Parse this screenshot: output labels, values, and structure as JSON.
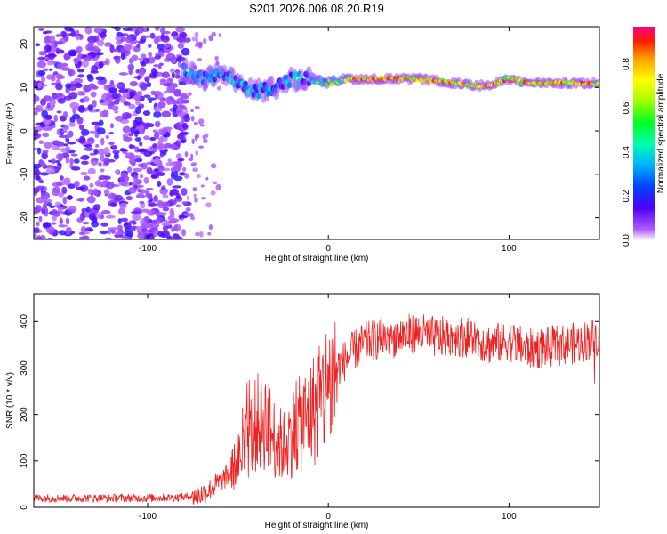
{
  "figure_title": "S201.2026.006.08.20.R19",
  "chart_data": [
    {
      "type": "heatmap",
      "title": "S201.2026.006.08.20.R19",
      "xlabel": "Height of straight line (km)",
      "ylabel": "Frequency (Hz)",
      "xlim": [
        -163,
        150
      ],
      "ylim": [
        -25,
        24
      ],
      "xticks": [
        -100,
        0,
        100
      ],
      "yticks": [
        -20,
        -10,
        0,
        10,
        20
      ],
      "colorbar": {
        "label": "Normalized spectral amplitude",
        "range": [
          0,
          0.97
        ],
        "ticks": [
          0.0,
          0.2,
          0.4,
          0.6,
          0.8
        ],
        "tick_labels": [
          "0.0",
          "0.2",
          "0.4",
          "0.6",
          "0.8"
        ]
      },
      "dominant_frequency_track": {
        "x": [
          -80,
          -70,
          -60,
          -50,
          -40,
          -30,
          -20,
          -10,
          0,
          10,
          20,
          30,
          40,
          50,
          60,
          70,
          80,
          90,
          100,
          110,
          120,
          130,
          140,
          150
        ],
        "frequency": [
          14,
          12,
          13,
          11,
          9,
          10,
          12,
          12,
          11,
          12,
          12,
          12,
          12,
          12,
          11.5,
          11,
          10.5,
          10.5,
          12,
          11,
          11,
          11,
          11,
          11
        ]
      },
      "noise_region": {
        "x_range": [
          -163,
          -80
        ],
        "frequency_range": [
          -25,
          24
        ]
      }
    },
    {
      "type": "line",
      "xlabel": "Height of straight line (km)",
      "ylabel": "SNR (10 * v/v)",
      "xlim": [
        -163,
        150
      ],
      "ylim": [
        0,
        460
      ],
      "xticks": [
        -100,
        0,
        100
      ],
      "yticks": [
        0,
        100,
        200,
        300,
        400
      ],
      "series": [
        {
          "name": "SNR",
          "color": "#ee2222",
          "x": [
            -163,
            -140,
            -120,
            -100,
            -80,
            -70,
            -65,
            -60,
            -55,
            -50,
            -45,
            -40,
            -35,
            -30,
            -25,
            -20,
            -15,
            -10,
            -5,
            0,
            5,
            10,
            15,
            20,
            25,
            30,
            40,
            50,
            60,
            70,
            80,
            90,
            100,
            110,
            120,
            130,
            140,
            150
          ],
          "values": [
            20,
            20,
            20,
            20,
            22,
            28,
            40,
            55,
            70,
            100,
            140,
            180,
            190,
            150,
            130,
            160,
            180,
            200,
            230,
            260,
            300,
            320,
            340,
            355,
            360,
            365,
            370,
            375,
            365,
            370,
            365,
            350,
            360,
            340,
            345,
            350,
            355,
            370
          ]
        }
      ]
    }
  ]
}
